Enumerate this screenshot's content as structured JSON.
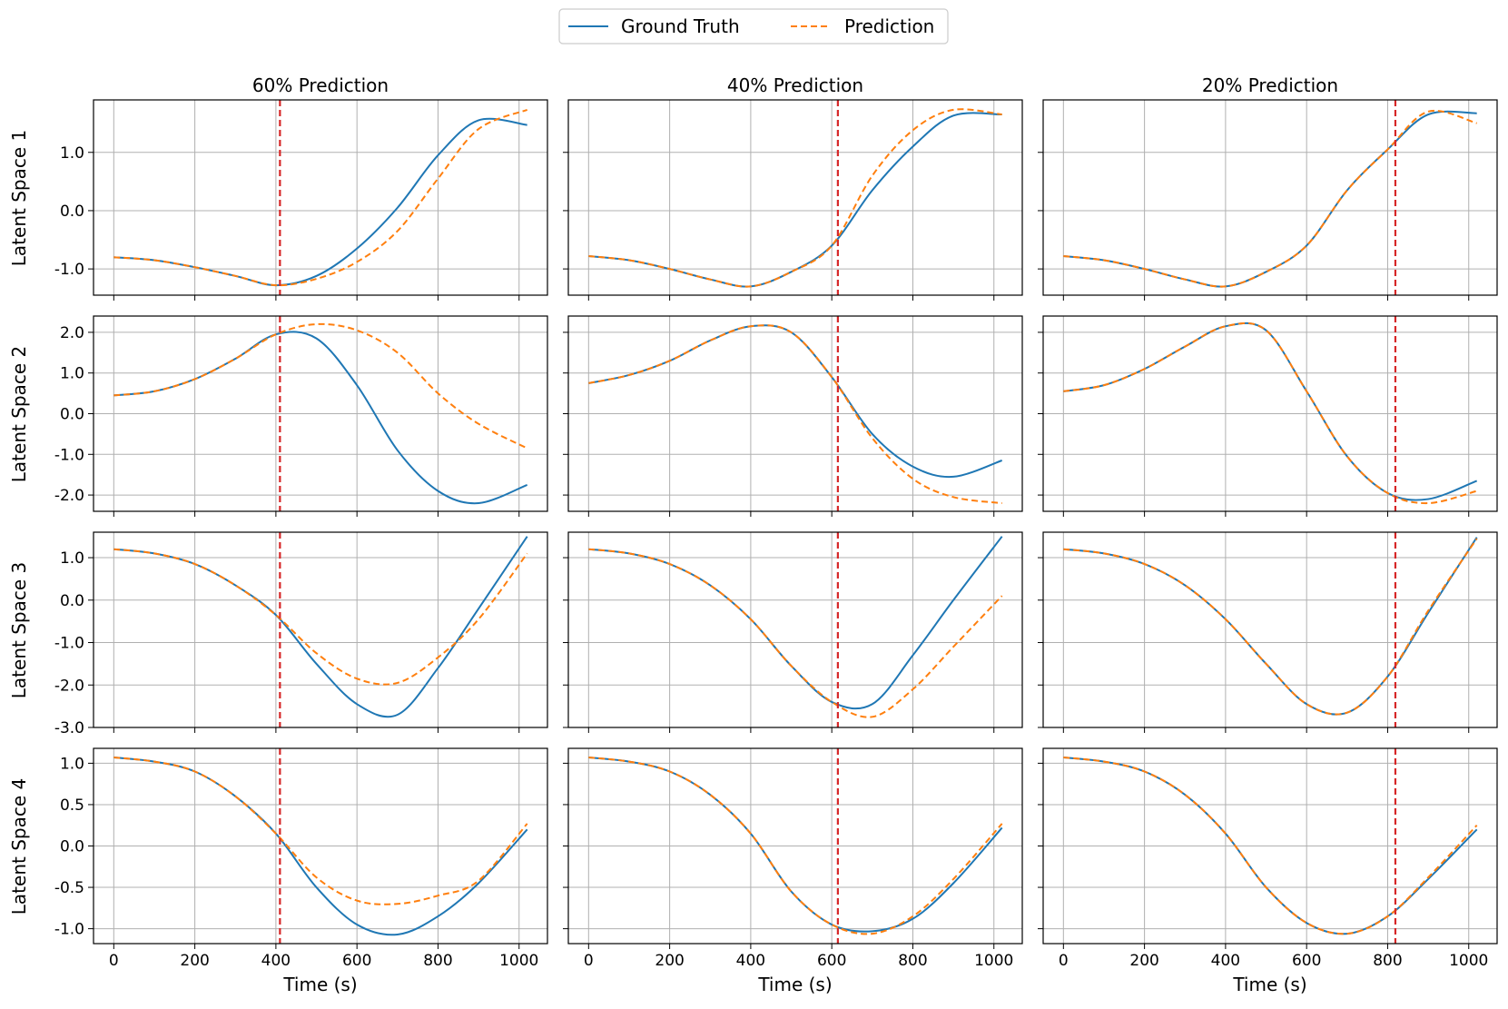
{
  "chart_data": {
    "type": "line",
    "legend": {
      "placement": "top-center",
      "entries": [
        "Ground Truth",
        "Prediction"
      ]
    },
    "colors": {
      "ground_truth": "#1f77b4",
      "prediction": "#ff7f0e",
      "cutoff": "#d62728",
      "grid": "#b0b0b0"
    },
    "columns": [
      {
        "title": "60% Prediction",
        "cutoff": 410
      },
      {
        "title": "40% Prediction",
        "cutoff": 615
      },
      {
        "title": "20% Prediction",
        "cutoff": 819
      }
    ],
    "xlabel": "Time (s)",
    "xlim": [
      -50,
      1070
    ],
    "xticks": [
      0,
      200,
      400,
      600,
      800,
      1000
    ],
    "x": [
      0,
      100,
      200,
      300,
      400,
      500,
      600,
      700,
      800,
      900,
      1020
    ],
    "rows": [
      {
        "ylabel": "Latent Space 1",
        "ylim": [
          -1.45,
          1.9
        ],
        "yticks": [
          -1.0,
          0.0,
          1.0
        ],
        "ytick_labels": [
          "-1.0",
          "0.0",
          "1.0"
        ],
        "panels": [
          {
            "truth": [
              -0.8,
              -0.85,
              -0.97,
              -1.12,
              -1.28,
              -1.12,
              -0.65,
              0.05,
              0.95,
              1.55,
              1.47
            ],
            "prediction": [
              -0.8,
              -0.85,
              -0.97,
              -1.12,
              -1.28,
              -1.17,
              -0.88,
              -0.35,
              0.55,
              1.4,
              1.73
            ]
          },
          {
            "truth": [
              -0.78,
              -0.85,
              -1.0,
              -1.18,
              -1.3,
              -1.05,
              -0.6,
              0.35,
              1.1,
              1.63,
              1.65
            ],
            "prediction": [
              -0.78,
              -0.85,
              -1.0,
              -1.18,
              -1.3,
              -1.05,
              -0.6,
              0.6,
              1.38,
              1.73,
              1.65
            ]
          },
          {
            "truth": [
              -0.78,
              -0.85,
              -1.0,
              -1.18,
              -1.3,
              -1.05,
              -0.6,
              0.35,
              1.05,
              1.65,
              1.67
            ],
            "prediction": [
              -0.78,
              -0.85,
              -1.0,
              -1.18,
              -1.3,
              -1.05,
              -0.6,
              0.35,
              1.05,
              1.7,
              1.5
            ]
          }
        ]
      },
      {
        "ylabel": "Latent Space 2",
        "ylim": [
          -2.4,
          2.4
        ],
        "yticks": [
          -2.0,
          -1.0,
          0.0,
          1.0,
          2.0
        ],
        "ytick_labels": [
          "-2.0",
          "-1.0",
          "0.0",
          "1.0",
          "2.0"
        ],
        "panels": [
          {
            "truth": [
              0.45,
              0.55,
              0.85,
              1.35,
              1.95,
              1.85,
              0.7,
              -0.9,
              -1.9,
              -2.2,
              -1.75
            ],
            "prediction": [
              0.45,
              0.55,
              0.85,
              1.35,
              1.95,
              2.2,
              2.05,
              1.5,
              0.5,
              -0.25,
              -0.85
            ]
          },
          {
            "truth": [
              0.75,
              0.95,
              1.3,
              1.8,
              2.15,
              2.0,
              0.9,
              -0.5,
              -1.3,
              -1.55,
              -1.15
            ],
            "prediction": [
              0.75,
              0.95,
              1.3,
              1.8,
              2.15,
              2.0,
              0.9,
              -0.6,
              -1.6,
              -2.05,
              -2.2
            ]
          },
          {
            "truth": [
              0.55,
              0.7,
              1.1,
              1.65,
              2.15,
              2.05,
              0.55,
              -1.05,
              -1.95,
              -2.1,
              -1.65
            ],
            "prediction": [
              0.55,
              0.7,
              1.1,
              1.65,
              2.15,
              2.05,
              0.55,
              -1.05,
              -1.95,
              -2.2,
              -1.9
            ]
          }
        ]
      },
      {
        "ylabel": "Latent Space 3",
        "ylim": [
          -3.0,
          1.6
        ],
        "yticks": [
          -3.0,
          -2.0,
          -1.0,
          0.0,
          1.0
        ],
        "ytick_labels": [
          "-3.0",
          "-2.0",
          "-1.0",
          "0.0",
          "1.0"
        ],
        "panels": [
          {
            "truth": [
              1.2,
              1.1,
              0.85,
              0.35,
              -0.35,
              -1.5,
              -2.45,
              -2.7,
              -1.6,
              -0.2,
              1.5
            ],
            "prediction": [
              1.2,
              1.1,
              0.85,
              0.35,
              -0.35,
              -1.25,
              -1.85,
              -1.95,
              -1.35,
              -0.45,
              1.1
            ]
          },
          {
            "truth": [
              1.2,
              1.1,
              0.85,
              0.35,
              -0.45,
              -1.55,
              -2.4,
              -2.45,
              -1.3,
              0.0,
              1.5
            ],
            "prediction": [
              1.2,
              1.1,
              0.85,
              0.35,
              -0.45,
              -1.55,
              -2.4,
              -2.75,
              -2.1,
              -1.1,
              0.1
            ]
          },
          {
            "truth": [
              1.2,
              1.1,
              0.85,
              0.35,
              -0.45,
              -1.5,
              -2.45,
              -2.65,
              -1.8,
              -0.3,
              1.48
            ],
            "prediction": [
              1.2,
              1.1,
              0.85,
              0.35,
              -0.45,
              -1.5,
              -2.45,
              -2.65,
              -1.8,
              -0.25,
              1.45
            ]
          }
        ]
      },
      {
        "ylabel": "Latent Space 4",
        "ylim": [
          -1.18,
          1.18
        ],
        "yticks": [
          -1.0,
          -0.5,
          0.0,
          0.5,
          1.0
        ],
        "ytick_labels": [
          "-1.0",
          "-0.5",
          "0.0",
          "0.5",
          "1.0"
        ],
        "panels": [
          {
            "truth": [
              1.07,
              1.02,
              0.9,
              0.6,
              0.15,
              -0.5,
              -0.95,
              -1.07,
              -0.85,
              -0.45,
              0.2
            ],
            "prediction": [
              1.07,
              1.02,
              0.9,
              0.6,
              0.15,
              -0.38,
              -0.66,
              -0.7,
              -0.6,
              -0.42,
              0.27
            ]
          },
          {
            "truth": [
              1.07,
              1.02,
              0.9,
              0.62,
              0.15,
              -0.55,
              -0.95,
              -1.03,
              -0.88,
              -0.45,
              0.22
            ],
            "prediction": [
              1.07,
              1.02,
              0.9,
              0.62,
              0.15,
              -0.55,
              -0.95,
              -1.06,
              -0.85,
              -0.4,
              0.27
            ]
          },
          {
            "truth": [
              1.07,
              1.02,
              0.9,
              0.62,
              0.15,
              -0.5,
              -0.93,
              -1.06,
              -0.85,
              -0.4,
              0.2
            ],
            "prediction": [
              1.07,
              1.02,
              0.9,
              0.62,
              0.15,
              -0.5,
              -0.93,
              -1.06,
              -0.85,
              -0.38,
              0.25
            ]
          }
        ]
      }
    ]
  }
}
